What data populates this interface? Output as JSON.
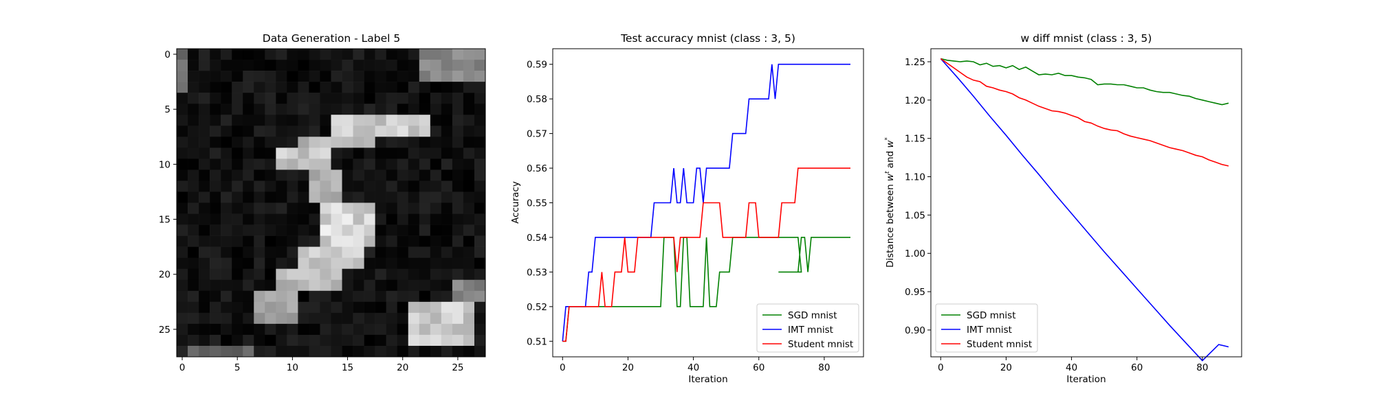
{
  "chart_data": [
    {
      "type": "heatmap",
      "title": "Data Generation - Label 5",
      "xlabel": "",
      "ylabel": "",
      "xlim": [
        -0.5,
        27.5
      ],
      "ylim": [
        27.5,
        -0.5
      ],
      "xticks": [
        0,
        5,
        10,
        15,
        20,
        25
      ],
      "yticks": [
        0,
        5,
        10,
        15,
        20,
        25
      ],
      "xtick_labels": [
        "0",
        "5",
        "10",
        "15",
        "20",
        "25"
      ],
      "ytick_labels": [
        "0",
        "5",
        "10",
        "15",
        "20",
        "25"
      ],
      "colormap": "gray",
      "bright_regions": [
        {
          "rows": [
            6,
            7
          ],
          "cols": [
            14,
            22
          ],
          "value": 0.92
        },
        {
          "rows": [
            8,
            8
          ],
          "cols": [
            11,
            17
          ],
          "value": 0.85
        },
        {
          "rows": [
            9,
            10
          ],
          "cols": [
            9,
            13
          ],
          "value": 0.9
        },
        {
          "rows": [
            11,
            13
          ],
          "cols": [
            12,
            14
          ],
          "value": 0.8
        },
        {
          "rows": [
            14,
            17
          ],
          "cols": [
            13,
            17
          ],
          "value": 0.95
        },
        {
          "rows": [
            18,
            19
          ],
          "cols": [
            11,
            16
          ],
          "value": 0.9
        },
        {
          "rows": [
            20,
            21
          ],
          "cols": [
            9,
            14
          ],
          "value": 0.85
        },
        {
          "rows": [
            22,
            24
          ],
          "cols": [
            7,
            10
          ],
          "value": 0.7
        },
        {
          "rows": [
            23,
            26
          ],
          "cols": [
            21,
            26
          ],
          "value": 0.9
        },
        {
          "rows": [
            21,
            22
          ],
          "cols": [
            25,
            27
          ],
          "value": 0.6
        },
        {
          "rows": [
            0,
            2
          ],
          "cols": [
            22,
            27
          ],
          "value": 0.6
        },
        {
          "rows": [
            0,
            3
          ],
          "cols": [
            0,
            0
          ],
          "value": 0.5
        },
        {
          "rows": [
            27,
            27
          ],
          "cols": [
            1,
            6
          ],
          "value": 0.45
        }
      ]
    },
    {
      "type": "line",
      "title": "Test accuracy mnist (class : 3, 5)",
      "xlabel": "Iteration",
      "ylabel": "Accuracy",
      "xlim": [
        -3,
        92
      ],
      "ylim": [
        0.5055,
        0.5945
      ],
      "xticks": [
        0,
        20,
        40,
        60,
        80
      ],
      "yticks": [
        0.51,
        0.52,
        0.53,
        0.54,
        0.55,
        0.56,
        0.57,
        0.58,
        0.59
      ],
      "xtick_labels": [
        "0",
        "20",
        "40",
        "60",
        "80"
      ],
      "ytick_labels": [
        "0.51",
        "0.52",
        "0.53",
        "0.54",
        "0.55",
        "0.56",
        "0.57",
        "0.58",
        "0.59"
      ],
      "grid": false,
      "legend_position": "lower right",
      "series": [
        {
          "name": "SGD mnist",
          "color": "#008000",
          "step": true,
          "points": [
            [
              0,
              0.51
            ],
            [
              1,
              0.51
            ],
            [
              2,
              0.52
            ],
            [
              30,
              0.52
            ],
            [
              31,
              0.54
            ],
            [
              34,
              0.54
            ],
            [
              35,
              0.52
            ],
            [
              36,
              0.52
            ],
            [
              37,
              0.54
            ],
            [
              38,
              0.54
            ],
            [
              39,
              0.52
            ],
            [
              43,
              0.52
            ],
            [
              44,
              0.54
            ],
            [
              45,
              0.52
            ],
            [
              47,
              0.52
            ],
            [
              48,
              0.53
            ],
            [
              51,
              0.53
            ],
            [
              52,
              0.54
            ],
            [
              71,
              0.54
            ],
            [
              72,
              0.54
            ],
            [
              73,
              0.53
            ],
            [
              66,
              0.53
            ],
            [
              67,
              0.53
            ],
            [
              72,
              0.53
            ],
            [
              73,
              0.54
            ],
            [
              74,
              0.54
            ],
            [
              75,
              0.53
            ],
            [
              76,
              0.54
            ],
            [
              88,
              0.54
            ]
          ]
        },
        {
          "name": "IMT mnist",
          "color": "#0000ff",
          "step": true,
          "points": [
            [
              0,
              0.51
            ],
            [
              1,
              0.52
            ],
            [
              7,
              0.52
            ],
            [
              8,
              0.53
            ],
            [
              9,
              0.53
            ],
            [
              10,
              0.54
            ],
            [
              27,
              0.54
            ],
            [
              28,
              0.55
            ],
            [
              33,
              0.55
            ],
            [
              34,
              0.56
            ],
            [
              35,
              0.55
            ],
            [
              36,
              0.55
            ],
            [
              37,
              0.56
            ],
            [
              38,
              0.55
            ],
            [
              40,
              0.55
            ],
            [
              41,
              0.56
            ],
            [
              42,
              0.56
            ],
            [
              43,
              0.55
            ],
            [
              44,
              0.56
            ],
            [
              51,
              0.56
            ],
            [
              52,
              0.57
            ],
            [
              56,
              0.57
            ],
            [
              57,
              0.58
            ],
            [
              63,
              0.58
            ],
            [
              64,
              0.59
            ],
            [
              65,
              0.58
            ],
            [
              66,
              0.59
            ],
            [
              88,
              0.59
            ]
          ]
        },
        {
          "name": "Student mnist",
          "color": "#ff0000",
          "step": true,
          "points": [
            [
              0,
              0.51
            ],
            [
              1,
              0.51
            ],
            [
              2,
              0.52
            ],
            [
              11,
              0.52
            ],
            [
              12,
              0.53
            ],
            [
              13,
              0.52
            ],
            [
              15,
              0.52
            ],
            [
              16,
              0.53
            ],
            [
              18,
              0.53
            ],
            [
              19,
              0.54
            ],
            [
              20,
              0.53
            ],
            [
              22,
              0.53
            ],
            [
              23,
              0.54
            ],
            [
              34,
              0.54
            ],
            [
              35,
              0.53
            ],
            [
              36,
              0.54
            ],
            [
              42,
              0.54
            ],
            [
              43,
              0.55
            ],
            [
              48,
              0.55
            ],
            [
              49,
              0.54
            ],
            [
              56,
              0.54
            ],
            [
              57,
              0.55
            ],
            [
              59,
              0.55
            ],
            [
              60,
              0.54
            ],
            [
              66,
              0.54
            ],
            [
              67,
              0.55
            ],
            [
              71,
              0.55
            ],
            [
              72,
              0.56
            ],
            [
              88,
              0.56
            ]
          ]
        }
      ]
    },
    {
      "type": "line",
      "title": "w diff mnist (class : 3, 5)",
      "xlabel": "Iteration",
      "ylabel": "Distance between w^t and w^*",
      "ylabel_parts": {
        "prefix": "Distance between ",
        "w1": "w",
        "sup1": "t",
        "mid": " and ",
        "w2": "w",
        "sup2": "*"
      },
      "xlim": [
        -3,
        92
      ],
      "ylim": [
        0.865,
        1.267
      ],
      "xticks": [
        0,
        20,
        40,
        60,
        80
      ],
      "yticks": [
        0.9,
        0.95,
        1.0,
        1.05,
        1.1,
        1.15,
        1.2,
        1.25
      ],
      "xtick_labels": [
        "0",
        "20",
        "40",
        "60",
        "80"
      ],
      "ytick_labels": [
        "0.90",
        "0.95",
        "1.00",
        "1.05",
        "1.10",
        "1.15",
        "1.20",
        "1.25"
      ],
      "grid": false,
      "legend_position": "lower left",
      "series": [
        {
          "name": "SGD mnist",
          "color": "#008000",
          "points": [
            [
              0,
              1.254
            ],
            [
              2,
              1.252
            ],
            [
              4,
              1.251
            ],
            [
              6,
              1.25
            ],
            [
              8,
              1.251
            ],
            [
              10,
              1.25
            ],
            [
              12,
              1.246
            ],
            [
              14,
              1.248
            ],
            [
              16,
              1.244
            ],
            [
              18,
              1.245
            ],
            [
              20,
              1.242
            ],
            [
              22,
              1.245
            ],
            [
              24,
              1.24
            ],
            [
              26,
              1.243
            ],
            [
              28,
              1.238
            ],
            [
              30,
              1.233
            ],
            [
              32,
              1.234
            ],
            [
              34,
              1.233
            ],
            [
              36,
              1.235
            ],
            [
              38,
              1.232
            ],
            [
              40,
              1.232
            ],
            [
              42,
              1.23
            ],
            [
              44,
              1.229
            ],
            [
              46,
              1.227
            ],
            [
              48,
              1.22
            ],
            [
              50,
              1.221
            ],
            [
              52,
              1.221
            ],
            [
              54,
              1.22
            ],
            [
              56,
              1.22
            ],
            [
              58,
              1.218
            ],
            [
              60,
              1.216
            ],
            [
              62,
              1.216
            ],
            [
              64,
              1.213
            ],
            [
              66,
              1.211
            ],
            [
              68,
              1.21
            ],
            [
              70,
              1.21
            ],
            [
              72,
              1.208
            ],
            [
              74,
              1.206
            ],
            [
              76,
              1.205
            ],
            [
              78,
              1.202
            ],
            [
              80,
              1.2
            ],
            [
              82,
              1.198
            ],
            [
              84,
              1.196
            ],
            [
              86,
              1.194
            ],
            [
              88,
              1.196
            ]
          ]
        },
        {
          "name": "IMT mnist",
          "color": "#0000ff",
          "points": [
            [
              0,
              1.254
            ],
            [
              5,
              1.23
            ],
            [
              10,
              1.205
            ],
            [
              15,
              1.179
            ],
            [
              20,
              1.154
            ],
            [
              25,
              1.128
            ],
            [
              30,
              1.103
            ],
            [
              35,
              1.077
            ],
            [
              40,
              1.052
            ],
            [
              45,
              1.027
            ],
            [
              50,
              1.002
            ],
            [
              55,
              0.978
            ],
            [
              60,
              0.954
            ],
            [
              65,
              0.93
            ],
            [
              70,
              0.906
            ],
            [
              75,
              0.883
            ],
            [
              80,
              0.86
            ],
            [
              85,
              0.881
            ],
            [
              88,
              0.878
            ]
          ]
        },
        {
          "name": "Student mnist",
          "color": "#ff0000",
          "points": [
            [
              0,
              1.254
            ],
            [
              2,
              1.248
            ],
            [
              4,
              1.242
            ],
            [
              6,
              1.236
            ],
            [
              8,
              1.23
            ],
            [
              10,
              1.226
            ],
            [
              12,
              1.224
            ],
            [
              14,
              1.218
            ],
            [
              16,
              1.216
            ],
            [
              18,
              1.213
            ],
            [
              20,
              1.211
            ],
            [
              22,
              1.208
            ],
            [
              24,
              1.203
            ],
            [
              26,
              1.2
            ],
            [
              28,
              1.196
            ],
            [
              30,
              1.192
            ],
            [
              32,
              1.189
            ],
            [
              34,
              1.186
            ],
            [
              36,
              1.185
            ],
            [
              38,
              1.183
            ],
            [
              40,
              1.18
            ],
            [
              42,
              1.177
            ],
            [
              44,
              1.172
            ],
            [
              46,
              1.17
            ],
            [
              48,
              1.166
            ],
            [
              50,
              1.163
            ],
            [
              52,
              1.161
            ],
            [
              54,
              1.16
            ],
            [
              56,
              1.156
            ],
            [
              58,
              1.153
            ],
            [
              60,
              1.151
            ],
            [
              62,
              1.149
            ],
            [
              64,
              1.147
            ],
            [
              66,
              1.144
            ],
            [
              68,
              1.141
            ],
            [
              70,
              1.138
            ],
            [
              72,
              1.136
            ],
            [
              74,
              1.134
            ],
            [
              76,
              1.131
            ],
            [
              78,
              1.128
            ],
            [
              80,
              1.126
            ],
            [
              82,
              1.122
            ],
            [
              84,
              1.119
            ],
            [
              86,
              1.116
            ],
            [
              88,
              1.114
            ]
          ]
        }
      ]
    }
  ]
}
